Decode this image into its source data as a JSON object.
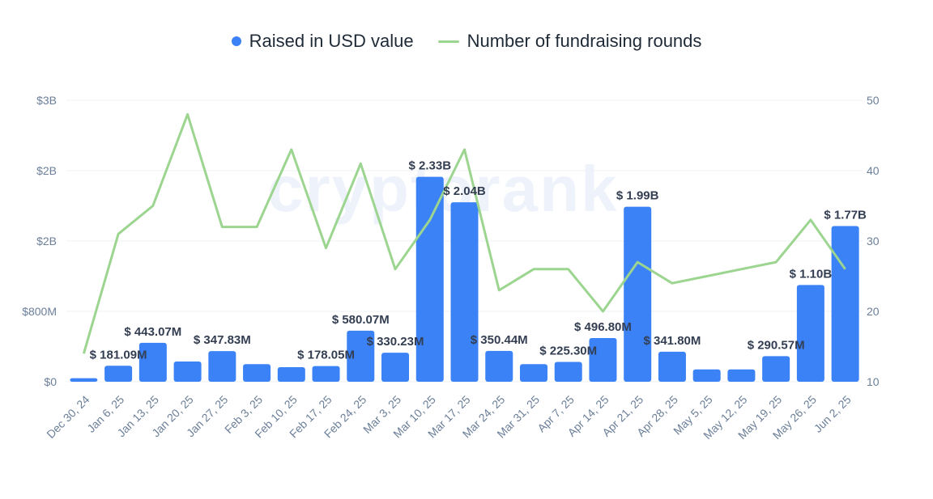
{
  "chart_data": {
    "type": "bar",
    "legend": {
      "position": "top",
      "items": [
        {
          "name": "Raised in USD value",
          "marker": "dot",
          "color": "#3b82f6"
        },
        {
          "name": "Number of fundraising rounds",
          "marker": "line",
          "color": "#9cd58f"
        }
      ]
    },
    "watermark": "cryptorank",
    "categories": [
      "Dec 30, 24",
      "Jan 6, 25",
      "Jan 13, 25",
      "Jan 20, 25",
      "Jan 27, 25",
      "Feb 3, 25",
      "Feb 10, 25",
      "Feb 17, 25",
      "Feb 24, 25",
      "Mar 3, 25",
      "Mar 10, 25",
      "Mar 17, 25",
      "Mar 24, 25",
      "Mar 31, 25",
      "Apr 7, 25",
      "Apr 14, 25",
      "Apr 21, 25",
      "Apr 28, 25",
      "May 5, 25",
      "May 12, 25",
      "May 19, 25",
      "May 26, 25",
      "Jun 2, 25"
    ],
    "series": [
      {
        "name": "Raised in USD value",
        "type": "bar",
        "axis": "left",
        "color": "#3b82f6",
        "values": [
          40,
          181.09,
          443.07,
          230,
          347.83,
          200,
          165,
          178.05,
          580.07,
          330.23,
          2330,
          2040,
          350.44,
          200,
          225.3,
          496.8,
          1990,
          341.8,
          140,
          140,
          290.57,
          1100,
          1770
        ],
        "labels": [
          "",
          "$ 181.09M",
          "$ 443.07M",
          "",
          "$ 347.83M",
          "",
          "",
          "$ 178.05M",
          "$ 580.07M",
          "$ 330.23M",
          "$ 2.33B",
          "$ 2.04B",
          "$ 350.44M",
          "",
          "$ 225.30M",
          "$ 496.80M",
          "$ 1.99B",
          "$ 341.80M",
          "",
          "",
          "$ 290.57M",
          "$ 1.10B",
          "$ 1.77B"
        ]
      },
      {
        "name": "Number of fundraising rounds",
        "type": "line",
        "axis": "right",
        "color": "#9cd58f",
        "values": [
          14,
          31,
          35,
          48,
          32,
          32,
          43,
          29,
          41,
          26,
          33,
          43,
          23,
          26,
          26,
          20,
          27,
          24,
          25,
          26,
          27,
          33,
          26
        ]
      }
    ],
    "y_left": {
      "ticks": [
        0,
        800,
        1600,
        2400,
        3200
      ],
      "tick_labels": [
        "$0",
        "$800M",
        "$2B",
        "$2B",
        "$3B"
      ],
      "ylim": [
        0,
        3200
      ]
    },
    "y_right": {
      "ticks": [
        10,
        20,
        30,
        40,
        50
      ],
      "tick_labels": [
        "10",
        "20",
        "30",
        "40",
        "50"
      ],
      "ylim": [
        10,
        50
      ]
    },
    "grid": true
  }
}
